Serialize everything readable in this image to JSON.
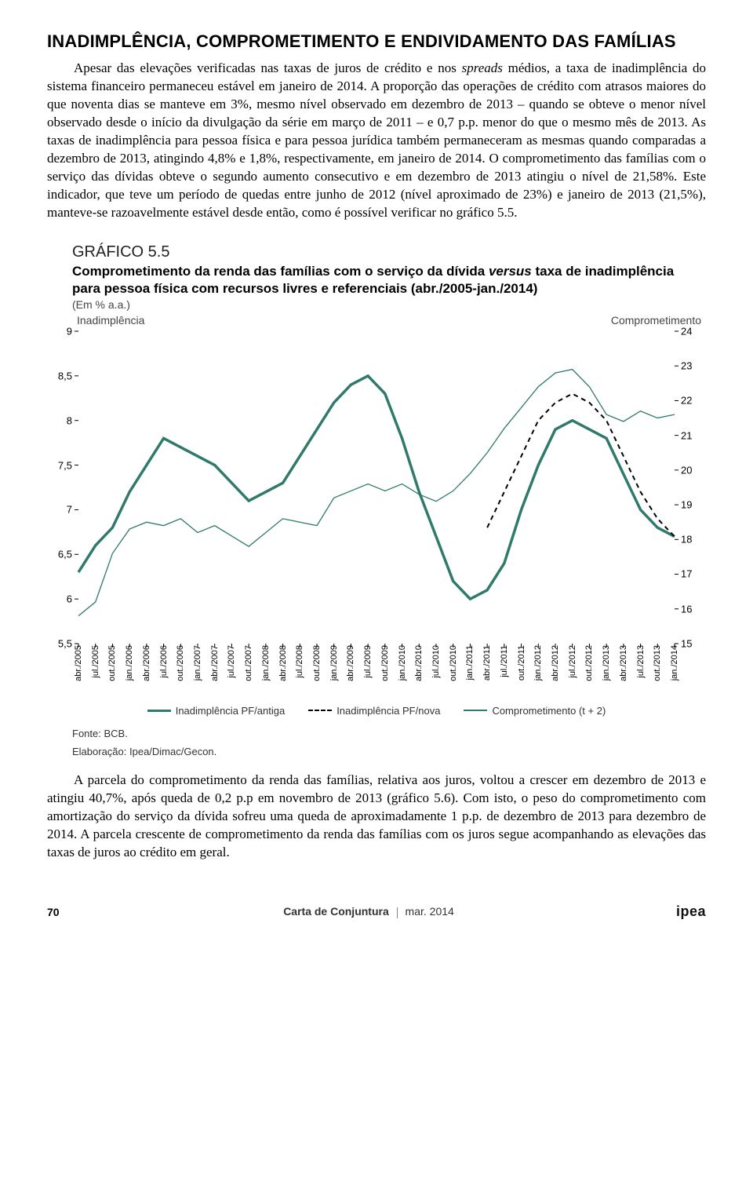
{
  "section_heading": "INADIMPLÊNCIA, COMPROMETIMENTO E ENDIVIDAMENTO DAS FAMÍLIAS",
  "para1_html": "Apesar das elevações verificadas nas taxas de juros de crédito e nos <em>spreads</em> médios, a taxa de inadimplência do sistema financeiro permaneceu estável em janeiro de 2014. A proporção das operações de crédito com atrasos maiores do que noventa dias se manteve em 3%, mesmo nível observado em dezembro de 2013 – quando se obteve o menor nível observado desde o início da divulgação da série em março de 2011 – e 0,7 p.p. menor do que o mesmo mês de 2013. As taxas de inadimplência para pessoa física e para pessoa jurídica também permaneceram as mesmas quando comparadas a dezembro de 2013, atingindo 4,8% e 1,8%, respectivamente, em janeiro de 2014. O comprometimento das famílias com o serviço das dívidas obteve o segundo aumento consecutivo e em dezembro de 2013 atingiu o nível de 21,58%. Este indicador, que teve um período de quedas entre junho de 2012 (nível aproximado de 23%) e janeiro de 2013 (21,5%), manteve-se razoavelmente estável desde então, como é possível verificar no gráfico 5.5.",
  "chart": {
    "type": "line",
    "number": "GRÁFICO 5.5",
    "title_html": "Comprometimento da renda das famílias com o serviço da dívida <em>versus</em> taxa de inadimplência para pessoa física com recursos livres e referenciais (abr./2005-jan./2014)",
    "unit": "(Em % a.a.)",
    "left_axis_label": "Inadimplência",
    "right_axis_label": "Comprometimento",
    "y_left": {
      "min": 5.5,
      "max": 9.0,
      "step": 0.5,
      "ticks": [
        "5,5",
        "6",
        "6,5",
        "7",
        "7,5",
        "8",
        "8,5",
        "9"
      ]
    },
    "y_right": {
      "min": 15,
      "max": 24,
      "step": 1,
      "ticks": [
        "15",
        "16",
        "17",
        "18",
        "19",
        "20",
        "21",
        "22",
        "23",
        "24"
      ]
    },
    "x_labels": [
      "abr./2005",
      "jul./2005",
      "out./2005",
      "jan./2006",
      "abr./2006",
      "jul./2006",
      "out./2006",
      "jan./2007",
      "abr./2007",
      "jul./2007",
      "out./2007",
      "jan./2008",
      "abr./2008",
      "jul./2008",
      "out./2008",
      "jan./2009",
      "abr./2009",
      "jul./2009",
      "out./2009",
      "jan./2010",
      "abr./2010",
      "jul./2010",
      "out./2010",
      "jan./2011",
      "abr./2011",
      "jul./2011",
      "out./2011",
      "jan./2012",
      "abr./2012",
      "jul./2012",
      "out./2012",
      "jan./2013",
      "abr./2013",
      "jul./2013",
      "out./2013",
      "jan./2014"
    ],
    "series": {
      "inadimplencia_antiga": {
        "label": "Inadimplência PF/antiga",
        "axis": "left",
        "color": "#2f7a6b",
        "width": 3.5,
        "dash": "none",
        "values": [
          6.3,
          6.6,
          6.8,
          7.2,
          7.5,
          7.8,
          7.7,
          7.6,
          7.5,
          7.3,
          7.1,
          7.2,
          7.3,
          7.6,
          7.9,
          8.2,
          8.4,
          8.5,
          8.3,
          7.8,
          7.2,
          6.7,
          6.2,
          6.0,
          6.1,
          6.4,
          7.0,
          7.5,
          7.9,
          8.0,
          7.9,
          7.8,
          7.4,
          7.0,
          6.8,
          6.7
        ]
      },
      "inadimplencia_nova": {
        "label": "Inadimplência PF/nova",
        "axis": "left",
        "color": "#000000",
        "width": 2,
        "dash": "6,5",
        "values": [
          null,
          null,
          null,
          null,
          null,
          null,
          null,
          null,
          null,
          null,
          null,
          null,
          null,
          null,
          null,
          null,
          null,
          null,
          null,
          null,
          null,
          null,
          null,
          null,
          6.8,
          7.2,
          7.6,
          8.0,
          8.2,
          8.3,
          8.2,
          8.0,
          7.6,
          7.2,
          6.9,
          6.7
        ]
      },
      "comprometimento": {
        "label": "Comprometimento (t + 2)",
        "axis": "right",
        "color": "#2f7a6b",
        "width": 1.3,
        "dash": "none",
        "values": [
          15.8,
          16.2,
          17.6,
          18.3,
          18.5,
          18.4,
          18.6,
          18.2,
          18.4,
          18.1,
          17.8,
          18.2,
          18.6,
          18.5,
          18.4,
          19.2,
          19.4,
          19.6,
          19.4,
          19.6,
          19.3,
          19.1,
          19.4,
          19.9,
          20.5,
          21.2,
          21.8,
          22.4,
          22.8,
          22.9,
          22.4,
          21.6,
          21.4,
          21.7,
          21.5,
          21.6
        ]
      }
    },
    "legend_order": [
      "inadimplencia_antiga",
      "inadimplencia_nova",
      "comprometimento"
    ],
    "plot_bg": "#ffffff",
    "axis_color": "#000000",
    "grid": false
  },
  "source": "Fonte: BCB.",
  "elaboration": "Elaboração: Ipea/Dimac/Gecon.",
  "para2_html": "A parcela do comprometimento da renda das famílias, relativa aos juros, voltou a crescer em dezembro de 2013 e atingiu 40,7%, após queda de 0,2 p.p em novembro de 2013 (gráfico 5.6). Com isto, o peso do comprometimento com amortização do serviço da dívida sofreu uma queda de aproximadamente 1 p.p. de dezembro de 2013 para dezembro de 2014. A parcela crescente de comprometimento da renda das famílias com os juros segue acompanhando as elevações das taxas de juros ao crédito em geral.",
  "footer": {
    "page": "70",
    "publication": "Carta de Conjuntura",
    "issue": "mar. 2014",
    "logo": "ipea"
  }
}
